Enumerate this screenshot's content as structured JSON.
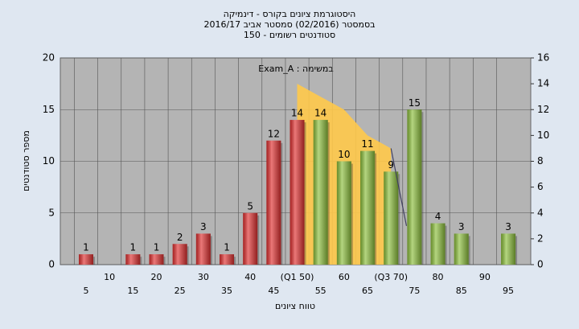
{
  "chart_data": {
    "type": "bar",
    "title": "היסטוגרמת ציונים בקורס - דינמיקה",
    "subtitle": "בסמסטר  (02/2016)  סמסטר אביב 2016/17",
    "subtitle2": "סטודנטים רשומים - 150",
    "annotation": "במשימה : Exam_A",
    "y_label": "מספר סטודנטים",
    "x_label": "טווח ציונים",
    "categories": [
      "5",
      "10",
      "15",
      "20",
      "25",
      "30",
      "35",
      "40",
      "45",
      "(Q1 50)",
      "55",
      "60",
      "65",
      "(Q3 70)",
      "75",
      "80",
      "85",
      "90",
      "95"
    ],
    "values": [
      1,
      0,
      1,
      1,
      2,
      3,
      1,
      5,
      12,
      14,
      14,
      10,
      11,
      9,
      15,
      4,
      3,
      0,
      3
    ],
    "colors": [
      "#e03030",
      "#e03030",
      "#e03030",
      "#e03030",
      "#e03030",
      "#e03030",
      "#e03030",
      "#e03030",
      "#e03030",
      "#e03030",
      "#8cbf3c",
      "#8cbf3c",
      "#8cbf3c",
      "#8cbf3c",
      "#8cbf3c",
      "#8cbf3c",
      "#8cbf3c",
      "#8cbf3c",
      "#8cbf3c"
    ],
    "ylim": [
      0,
      20
    ],
    "yticks": [
      0,
      5,
      10,
      15,
      20
    ],
    "y2lim": [
      0,
      16
    ],
    "y2ticks": [
      0,
      2,
      4,
      6,
      8,
      10,
      12,
      14,
      16
    ],
    "area": {
      "x": [
        50,
        55,
        60,
        65,
        70
      ],
      "values": [
        14,
        13,
        12,
        10,
        9
      ],
      "color": "#ffc94a",
      "axis": "y2"
    },
    "line": {
      "x": [
        70,
        73.3
      ],
      "values": [
        9,
        3
      ],
      "color": "#404060",
      "axis": "y2"
    },
    "grid": true
  }
}
